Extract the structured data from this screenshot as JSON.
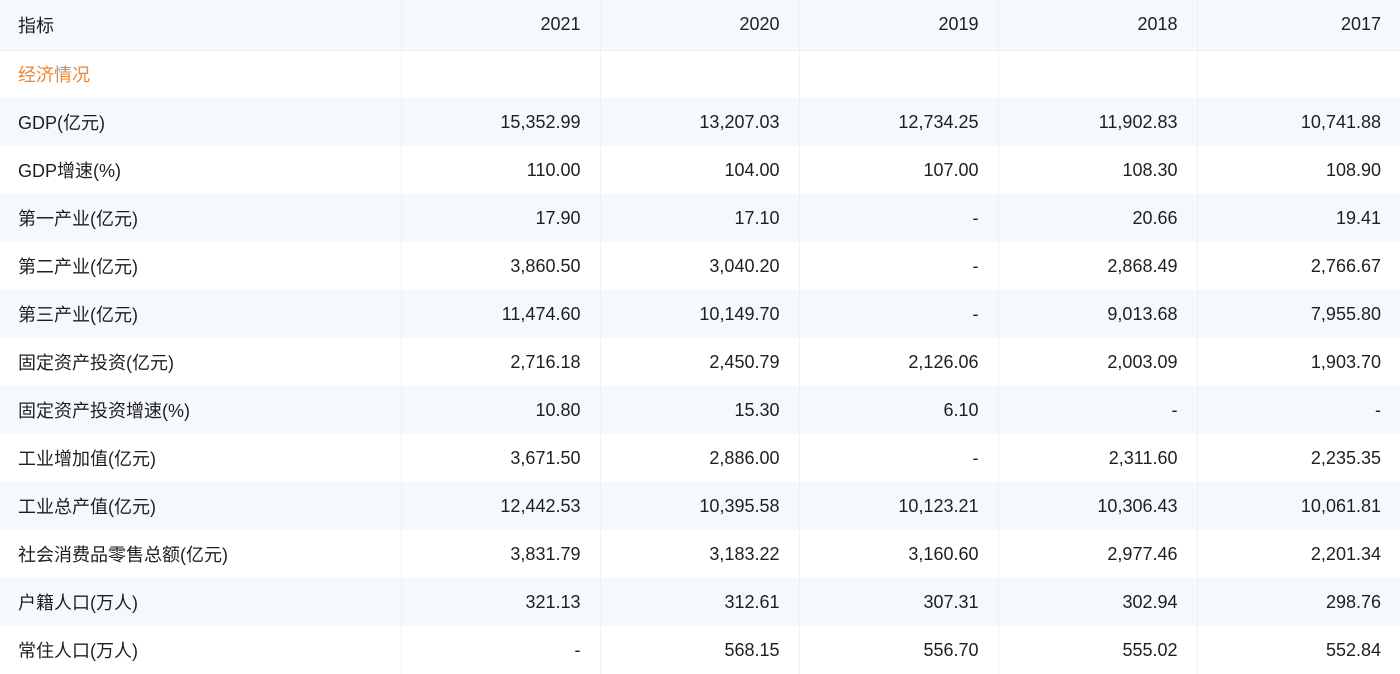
{
  "header": {
    "label": "指标",
    "years": [
      "2021",
      "2020",
      "2019",
      "2018",
      "2017"
    ]
  },
  "section": {
    "title": "经济情况"
  },
  "rows": [
    {
      "label": "GDP(亿元)",
      "values": [
        "15,352.99",
        "13,207.03",
        "12,734.25",
        "11,902.83",
        "10,741.88"
      ]
    },
    {
      "label": "GDP增速(%)",
      "values": [
        "110.00",
        "104.00",
        "107.00",
        "108.30",
        "108.90"
      ]
    },
    {
      "label": "第一产业(亿元)",
      "values": [
        "17.90",
        "17.10",
        "-",
        "20.66",
        "19.41"
      ]
    },
    {
      "label": "第二产业(亿元)",
      "values": [
        "3,860.50",
        "3,040.20",
        "-",
        "2,868.49",
        "2,766.67"
      ]
    },
    {
      "label": "第三产业(亿元)",
      "values": [
        "11,474.60",
        "10,149.70",
        "-",
        "9,013.68",
        "7,955.80"
      ]
    },
    {
      "label": "固定资产投资(亿元)",
      "values": [
        "2,716.18",
        "2,450.79",
        "2,126.06",
        "2,003.09",
        "1,903.70"
      ]
    },
    {
      "label": "固定资产投资增速(%)",
      "values": [
        "10.80",
        "15.30",
        "6.10",
        "-",
        "-"
      ]
    },
    {
      "label": "工业增加值(亿元)",
      "values": [
        "3,671.50",
        "2,886.00",
        "-",
        "2,311.60",
        "2,235.35"
      ]
    },
    {
      "label": "工业总产值(亿元)",
      "values": [
        "12,442.53",
        "10,395.58",
        "10,123.21",
        "10,306.43",
        "10,061.81"
      ]
    },
    {
      "label": "社会消费品零售总额(亿元)",
      "values": [
        "3,831.79",
        "3,183.22",
        "3,160.60",
        "2,977.46",
        "2,201.34"
      ]
    },
    {
      "label": "户籍人口(万人)",
      "values": [
        "321.13",
        "312.61",
        "307.31",
        "302.94",
        "298.76"
      ]
    },
    {
      "label": "常住人口(万人)",
      "values": [
        "-",
        "568.15",
        "556.70",
        "555.02",
        "552.84"
      ]
    }
  ],
  "colors": {
    "section_accent": "#f5832a",
    "stripe": "#f5f8fd"
  }
}
